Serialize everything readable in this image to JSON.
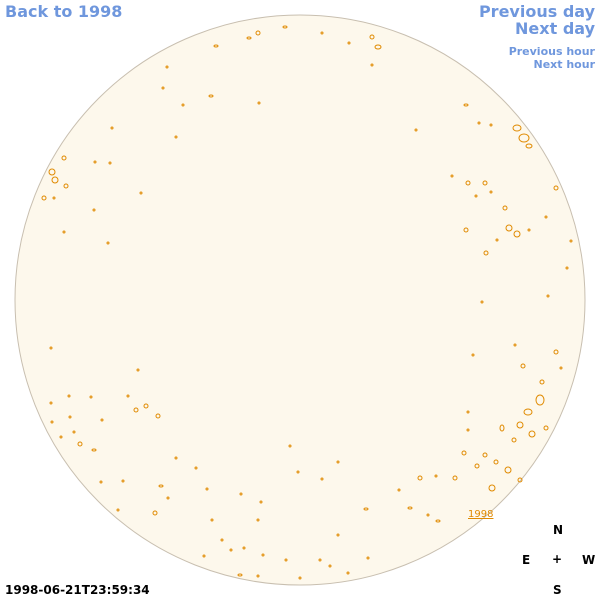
{
  "nav": {
    "back_label": "Back to 1998",
    "prev_day_label": "Previous day",
    "next_day_label": "Next day",
    "prev_hour_label": "Previous hour",
    "next_hour_label": "Next hour"
  },
  "disk": {
    "year_label": "1998",
    "fill_color": "#fdf8ec",
    "outline_color": "#c8bfb0",
    "contour_color": "#e08a00"
  },
  "compass": {
    "north": "N",
    "east": "E",
    "center": "+",
    "west": "W",
    "south": "S"
  },
  "timestamp": "1998-06-21T23:59:34"
}
